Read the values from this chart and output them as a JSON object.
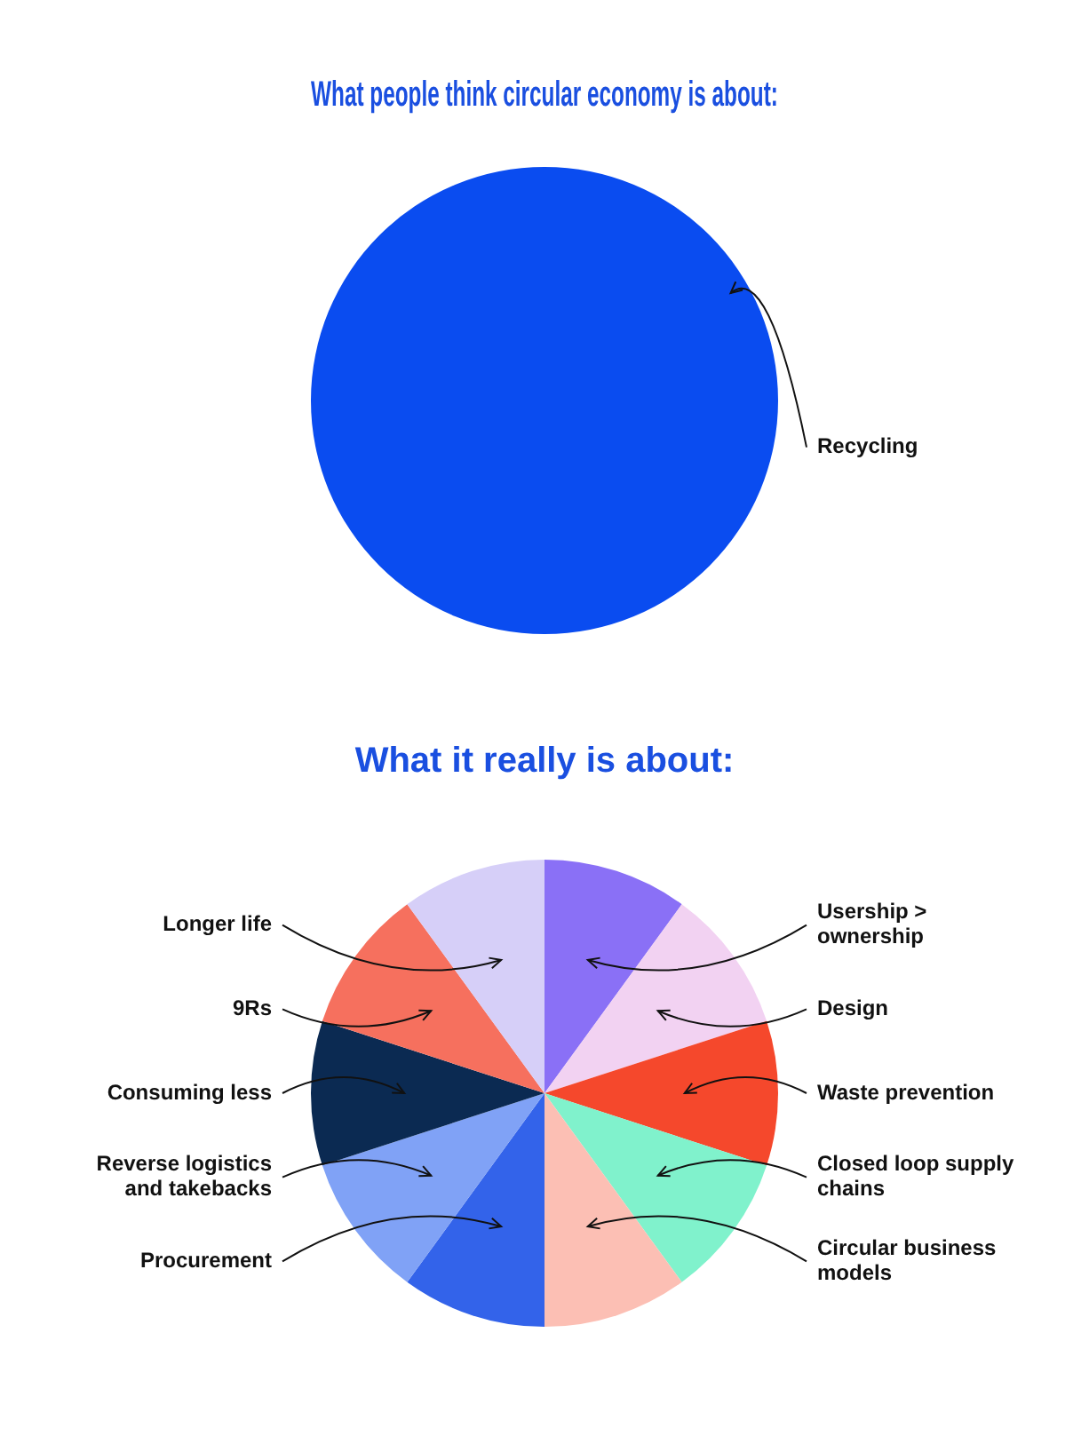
{
  "chart_data": [
    {
      "type": "pie",
      "title": "What people think circular economy is about:",
      "categories": [
        "Recycling"
      ],
      "values": [
        100
      ],
      "colors": [
        "#0a4cf0"
      ],
      "legend": false
    },
    {
      "type": "pie",
      "title": "What it really is about:",
      "categories": [
        "Usership > ownership",
        "Design",
        "Waste prevention",
        "Closed loop supply chains",
        "Circular business models",
        "Procurement",
        "Reverse logistics and takebacks",
        "Consuming less",
        "9Rs",
        "Longer life"
      ],
      "values": [
        10,
        10,
        10,
        10,
        10,
        10,
        10,
        10,
        10,
        10
      ],
      "colors": [
        "#8a70f6",
        "#f2d2f2",
        "#f5482c",
        "#80f2cc",
        "#fcbfb4",
        "#3363ea",
        "#80a2f6",
        "#0b2a52",
        "#f6705e",
        "#d6cff8"
      ],
      "legend": false
    }
  ]
}
